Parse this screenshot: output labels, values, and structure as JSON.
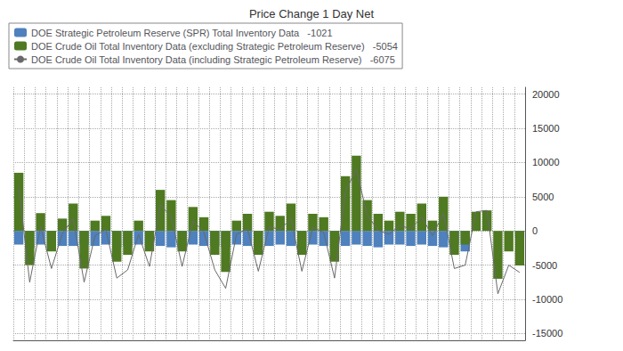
{
  "chart_data": {
    "type": "bar",
    "title": "Price Change 1 Day Net",
    "categories": [
      null,
      null,
      null,
      null,
      null,
      null,
      null,
      null,
      null,
      null,
      null,
      null,
      null,
      null,
      null,
      null,
      null,
      null,
      null,
      null,
      null,
      null,
      null,
      null,
      null,
      null,
      null,
      null,
      null,
      null,
      null,
      null,
      null,
      null,
      null,
      null,
      null,
      null,
      null,
      null,
      null,
      null,
      null,
      null,
      null,
      null,
      null
    ],
    "series": [
      {
        "name": "DOE Strategic Petroleum Reserve (SPR) Total Inventory Data   -1021",
        "type": "bar",
        "color": "#4e81bd",
        "values": [
          -2000,
          -2500,
          -2000,
          -2500,
          -2200,
          -2200,
          -2000,
          -2200,
          -2000,
          -2400,
          -2200,
          -2000,
          -2200,
          -2200,
          -2400,
          -2200,
          -2000,
          -2200,
          -2200,
          -2400,
          -2000,
          -2200,
          -2400,
          -2200,
          -2000,
          -2200,
          -2400,
          -2000,
          -2200,
          -2400,
          -2200,
          -2000,
          -2200,
          -2400,
          -2000,
          -2000,
          -2200,
          -2000,
          -2200,
          -2400,
          -2000,
          -3000,
          0,
          0,
          0,
          0,
          -1021
        ]
      },
      {
        "name": "DOE Crude Oil Total Inventory Data (excluding Strategic Petroleum Reserve)   -5054",
        "type": "bar",
        "color": "#4f7a21",
        "values": [
          8500,
          -5000,
          2600,
          -3000,
          1800,
          4000,
          -5500,
          1500,
          2200,
          -4500,
          -3500,
          1500,
          -3000,
          6000,
          4500,
          -3000,
          3500,
          2000,
          -3500,
          -6000,
          1500,
          2500,
          -3500,
          2800,
          2200,
          4000,
          -3500,
          2500,
          2000,
          -4500,
          8000,
          11000,
          4500,
          2500,
          1500,
          2800,
          2500,
          4000,
          1500,
          5000,
          -3500,
          -2000,
          2800,
          3000,
          -7000,
          -3000,
          -5054
        ]
      },
      {
        "name": "DOE Crude Oil Total Inventory Data (including Strategic Petroleum Reserve)   -6075",
        "type": "line",
        "color": "#696969",
        "values": [
          6500,
          -7500,
          600,
          -5500,
          -400,
          1800,
          -7500,
          -700,
          200,
          -6900,
          -5700,
          -500,
          -5200,
          3800,
          2100,
          -5200,
          1500,
          -200,
          -5700,
          -8400,
          -500,
          300,
          -5900,
          600,
          200,
          1800,
          -5900,
          500,
          -200,
          -6900,
          5800,
          9000,
          2300,
          100,
          -500,
          800,
          300,
          2000,
          -700,
          2600,
          -5500,
          -5000,
          2800,
          3000,
          -9200,
          -5000,
          -6075
        ]
      }
    ],
    "ylim": [
      -16000,
      21000
    ],
    "yticks": [
      -15000,
      -10000,
      -5000,
      0,
      5000,
      10000,
      15000,
      20000
    ],
    "grid": true,
    "legend": "upper left",
    "tick_labels": "y",
    "annotations": [
      {
        "text": "-1021",
        "value": -1021,
        "color": "#4e81bd"
      },
      {
        "text": "-6075",
        "value": -6075,
        "color": "#666666"
      }
    ]
  }
}
